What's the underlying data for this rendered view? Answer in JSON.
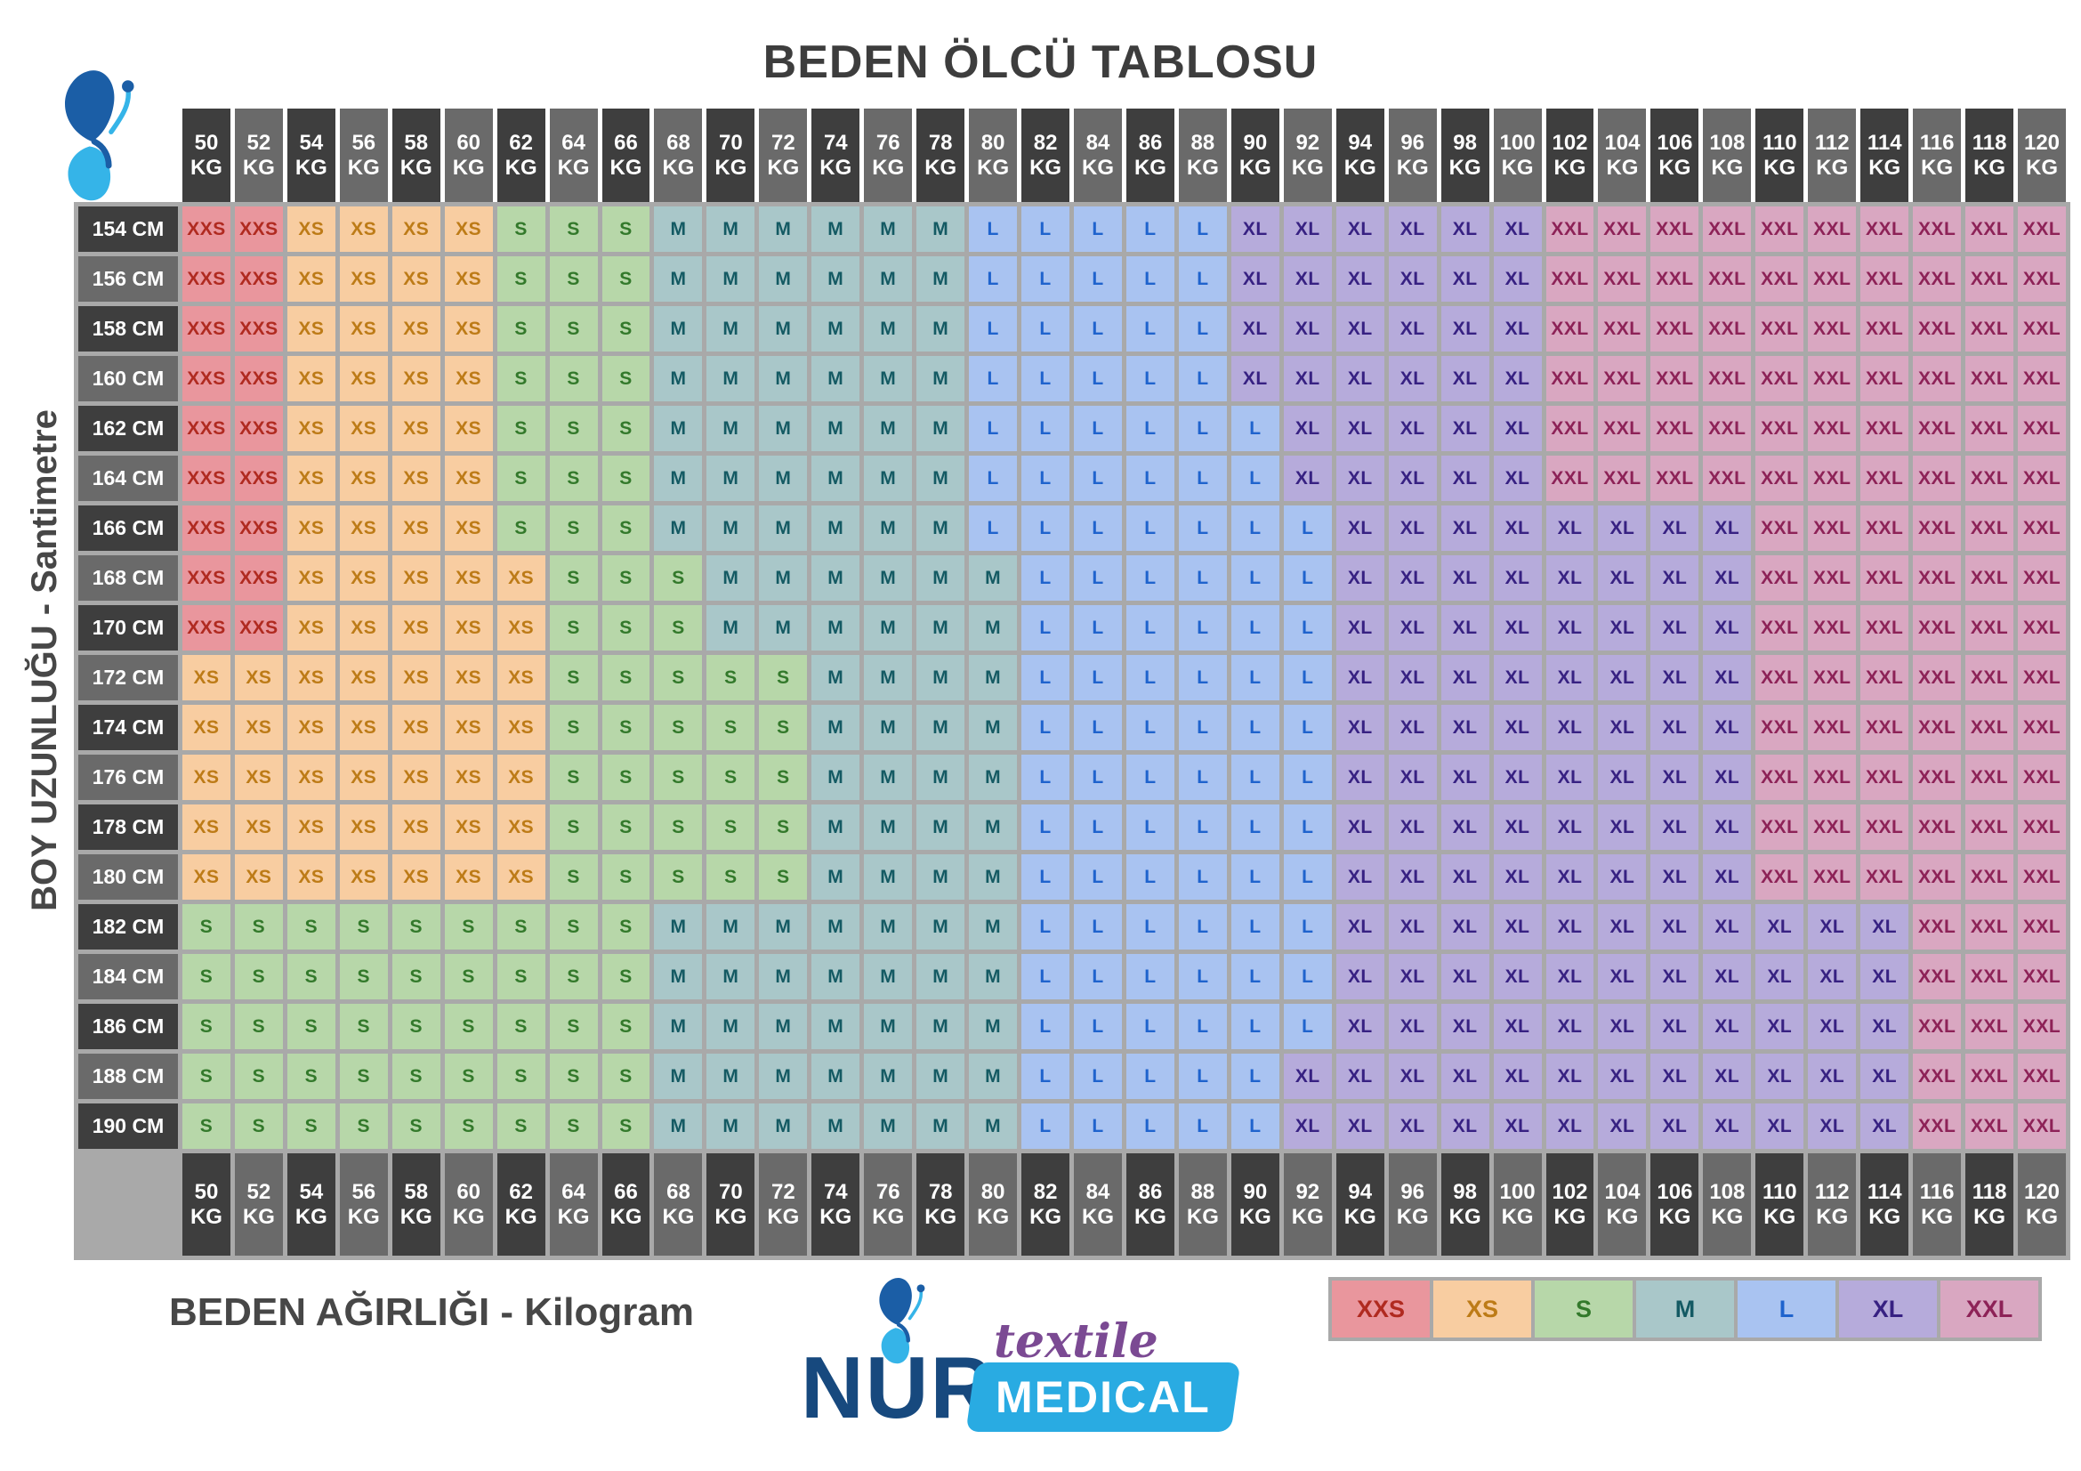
{
  "title": "BEDEN ÖLCÜ TABLOSU",
  "axis": {
    "y_label": "BOY UZUNLUĞU - Santimetre",
    "x_label": "BEDEN AĞIRLIĞI - Kilogram"
  },
  "logo": {
    "name": "NUR",
    "textile": "textile",
    "medical": "MEDICAL"
  },
  "legend": [
    "XXS",
    "XS",
    "S",
    "M",
    "L",
    "XL",
    "XXL"
  ],
  "colors": {
    "header_dark": "#3e3e3e",
    "header_medium": "#6a6a6a",
    "grid_background": "#a9a9a9",
    "title_text": "#3d3d3d",
    "label_text": "#474747",
    "brand_navy": "#17497e",
    "brand_cyan": "#29abe2",
    "brand_purple": "#7b4a93",
    "butterfly_dark": "#1b5ea6",
    "butterfly_light": "#35b4e8",
    "sizes": {
      "XXS": {
        "bg": "#e9969d",
        "text": "#b02a20"
      },
      "XS": {
        "bg": "#f8cda1",
        "text": "#bd7b17"
      },
      "S": {
        "bg": "#b7d7a9",
        "text": "#33792b"
      },
      "M": {
        "bg": "#a9c7c9",
        "text": "#145a63"
      },
      "L": {
        "bg": "#a9c3f1",
        "text": "#1f63cd"
      },
      "XL": {
        "bg": "#b6abdb",
        "text": "#372182"
      },
      "XXL": {
        "bg": "#d9a7c1",
        "text": "#8d2257"
      }
    }
  },
  "chart_data": {
    "type": "heatmap",
    "title": "BEDEN ÖLCÜ TABLOSU",
    "x_label": "BEDEN AĞIRLIĞI - Kilogram",
    "y_label": "BOY UZUNLUĞU - Santimetre",
    "x_unit": "KG",
    "y_unit": "CM",
    "legend_position": "bottom-right",
    "weights_kg": [
      50,
      52,
      54,
      56,
      58,
      60,
      62,
      64,
      66,
      68,
      70,
      72,
      74,
      76,
      78,
      80,
      82,
      84,
      86,
      88,
      90,
      92,
      94,
      96,
      98,
      100,
      102,
      104,
      106,
      108,
      110,
      112,
      114,
      116,
      118,
      120
    ],
    "heights_cm": [
      154,
      156,
      158,
      160,
      162,
      164,
      166,
      168,
      170,
      172,
      174,
      176,
      178,
      180,
      182,
      184,
      186,
      188,
      190
    ],
    "matrix": [
      [
        "XXS",
        "XXS",
        "XS",
        "XS",
        "XS",
        "XS",
        "S",
        "S",
        "S",
        "M",
        "M",
        "M",
        "M",
        "M",
        "M",
        "L",
        "L",
        "L",
        "L",
        "L",
        "XL",
        "XL",
        "XL",
        "XL",
        "XL",
        "XL",
        "XXL",
        "XXL",
        "XXL",
        "XXL",
        "XXL",
        "XXL",
        "XXL",
        "XXL",
        "XXL",
        "XXL"
      ],
      [
        "XXS",
        "XXS",
        "XS",
        "XS",
        "XS",
        "XS",
        "S",
        "S",
        "S",
        "M",
        "M",
        "M",
        "M",
        "M",
        "M",
        "L",
        "L",
        "L",
        "L",
        "L",
        "XL",
        "XL",
        "XL",
        "XL",
        "XL",
        "XL",
        "XXL",
        "XXL",
        "XXL",
        "XXL",
        "XXL",
        "XXL",
        "XXL",
        "XXL",
        "XXL",
        "XXL"
      ],
      [
        "XXS",
        "XXS",
        "XS",
        "XS",
        "XS",
        "XS",
        "S",
        "S",
        "S",
        "M",
        "M",
        "M",
        "M",
        "M",
        "M",
        "L",
        "L",
        "L",
        "L",
        "L",
        "XL",
        "XL",
        "XL",
        "XL",
        "XL",
        "XL",
        "XXL",
        "XXL",
        "XXL",
        "XXL",
        "XXL",
        "XXL",
        "XXL",
        "XXL",
        "XXL",
        "XXL"
      ],
      [
        "XXS",
        "XXS",
        "XS",
        "XS",
        "XS",
        "XS",
        "S",
        "S",
        "S",
        "M",
        "M",
        "M",
        "M",
        "M",
        "M",
        "L",
        "L",
        "L",
        "L",
        "L",
        "XL",
        "XL",
        "XL",
        "XL",
        "XL",
        "XL",
        "XXL",
        "XXL",
        "XXL",
        "XXL",
        "XXL",
        "XXL",
        "XXL",
        "XXL",
        "XXL",
        "XXL"
      ],
      [
        "XXS",
        "XXS",
        "XS",
        "XS",
        "XS",
        "XS",
        "S",
        "S",
        "S",
        "M",
        "M",
        "M",
        "M",
        "M",
        "M",
        "L",
        "L",
        "L",
        "L",
        "L",
        "L",
        "XL",
        "XL",
        "XL",
        "XL",
        "XL",
        "XXL",
        "XXL",
        "XXL",
        "XXL",
        "XXL",
        "XXL",
        "XXL",
        "XXL",
        "XXL",
        "XXL"
      ],
      [
        "XXS",
        "XXS",
        "XS",
        "XS",
        "XS",
        "XS",
        "S",
        "S",
        "S",
        "M",
        "M",
        "M",
        "M",
        "M",
        "M",
        "L",
        "L",
        "L",
        "L",
        "L",
        "L",
        "XL",
        "XL",
        "XL",
        "XL",
        "XL",
        "XXL",
        "XXL",
        "XXL",
        "XXL",
        "XXL",
        "XXL",
        "XXL",
        "XXL",
        "XXL",
        "XXL"
      ],
      [
        "XXS",
        "XXS",
        "XS",
        "XS",
        "XS",
        "XS",
        "S",
        "S",
        "S",
        "M",
        "M",
        "M",
        "M",
        "M",
        "M",
        "L",
        "L",
        "L",
        "L",
        "L",
        "L",
        "L",
        "XL",
        "XL",
        "XL",
        "XL",
        "XL",
        "XL",
        "XL",
        "XL",
        "XXL",
        "XXL",
        "XXL",
        "XXL",
        "XXL",
        "XXL"
      ],
      [
        "XXS",
        "XXS",
        "XS",
        "XS",
        "XS",
        "XS",
        "XS",
        "S",
        "S",
        "S",
        "M",
        "M",
        "M",
        "M",
        "M",
        "M",
        "L",
        "L",
        "L",
        "L",
        "L",
        "L",
        "XL",
        "XL",
        "XL",
        "XL",
        "XL",
        "XL",
        "XL",
        "XL",
        "XXL",
        "XXL",
        "XXL",
        "XXL",
        "XXL",
        "XXL"
      ],
      [
        "XXS",
        "XXS",
        "XS",
        "XS",
        "XS",
        "XS",
        "XS",
        "S",
        "S",
        "S",
        "M",
        "M",
        "M",
        "M",
        "M",
        "M",
        "L",
        "L",
        "L",
        "L",
        "L",
        "L",
        "XL",
        "XL",
        "XL",
        "XL",
        "XL",
        "XL",
        "XL",
        "XL",
        "XXL",
        "XXL",
        "XXL",
        "XXL",
        "XXL",
        "XXL"
      ],
      [
        "XS",
        "XS",
        "XS",
        "XS",
        "XS",
        "XS",
        "XS",
        "S",
        "S",
        "S",
        "S",
        "S",
        "M",
        "M",
        "M",
        "M",
        "L",
        "L",
        "L",
        "L",
        "L",
        "L",
        "XL",
        "XL",
        "XL",
        "XL",
        "XL",
        "XL",
        "XL",
        "XL",
        "XXL",
        "XXL",
        "XXL",
        "XXL",
        "XXL",
        "XXL"
      ],
      [
        "XS",
        "XS",
        "XS",
        "XS",
        "XS",
        "XS",
        "XS",
        "S",
        "S",
        "S",
        "S",
        "S",
        "M",
        "M",
        "M",
        "M",
        "L",
        "L",
        "L",
        "L",
        "L",
        "L",
        "XL",
        "XL",
        "XL",
        "XL",
        "XL",
        "XL",
        "XL",
        "XL",
        "XXL",
        "XXL",
        "XXL",
        "XXL",
        "XXL",
        "XXL"
      ],
      [
        "XS",
        "XS",
        "XS",
        "XS",
        "XS",
        "XS",
        "XS",
        "S",
        "S",
        "S",
        "S",
        "S",
        "M",
        "M",
        "M",
        "M",
        "L",
        "L",
        "L",
        "L",
        "L",
        "L",
        "XL",
        "XL",
        "XL",
        "XL",
        "XL",
        "XL",
        "XL",
        "XL",
        "XXL",
        "XXL",
        "XXL",
        "XXL",
        "XXL",
        "XXL"
      ],
      [
        "XS",
        "XS",
        "XS",
        "XS",
        "XS",
        "XS",
        "XS",
        "S",
        "S",
        "S",
        "S",
        "S",
        "M",
        "M",
        "M",
        "M",
        "L",
        "L",
        "L",
        "L",
        "L",
        "L",
        "XL",
        "XL",
        "XL",
        "XL",
        "XL",
        "XL",
        "XL",
        "XL",
        "XXL",
        "XXL",
        "XXL",
        "XXL",
        "XXL",
        "XXL"
      ],
      [
        "XS",
        "XS",
        "XS",
        "XS",
        "XS",
        "XS",
        "XS",
        "S",
        "S",
        "S",
        "S",
        "S",
        "M",
        "M",
        "M",
        "M",
        "L",
        "L",
        "L",
        "L",
        "L",
        "L",
        "XL",
        "XL",
        "XL",
        "XL",
        "XL",
        "XL",
        "XL",
        "XL",
        "XXL",
        "XXL",
        "XXL",
        "XXL",
        "XXL",
        "XXL"
      ],
      [
        "S",
        "S",
        "S",
        "S",
        "S",
        "S",
        "S",
        "S",
        "S",
        "M",
        "M",
        "M",
        "M",
        "M",
        "M",
        "M",
        "L",
        "L",
        "L",
        "L",
        "L",
        "L",
        "XL",
        "XL",
        "XL",
        "XL",
        "XL",
        "XL",
        "XL",
        "XL",
        "XL",
        "XL",
        "XL",
        "XXL",
        "XXL",
        "XXL"
      ],
      [
        "S",
        "S",
        "S",
        "S",
        "S",
        "S",
        "S",
        "S",
        "S",
        "M",
        "M",
        "M",
        "M",
        "M",
        "M",
        "M",
        "L",
        "L",
        "L",
        "L",
        "L",
        "L",
        "XL",
        "XL",
        "XL",
        "XL",
        "XL",
        "XL",
        "XL",
        "XL",
        "XL",
        "XL",
        "XL",
        "XXL",
        "XXL",
        "XXL"
      ],
      [
        "S",
        "S",
        "S",
        "S",
        "S",
        "S",
        "S",
        "S",
        "S",
        "M",
        "M",
        "M",
        "M",
        "M",
        "M",
        "M",
        "L",
        "L",
        "L",
        "L",
        "L",
        "L",
        "XL",
        "XL",
        "XL",
        "XL",
        "XL",
        "XL",
        "XL",
        "XL",
        "XL",
        "XL",
        "XL",
        "XXL",
        "XXL",
        "XXL"
      ],
      [
        "S",
        "S",
        "S",
        "S",
        "S",
        "S",
        "S",
        "S",
        "S",
        "M",
        "M",
        "M",
        "M",
        "M",
        "M",
        "M",
        "L",
        "L",
        "L",
        "L",
        "L",
        "XL",
        "XL",
        "XL",
        "XL",
        "XL",
        "XL",
        "XL",
        "XL",
        "XL",
        "XL",
        "XL",
        "XL",
        "XXL",
        "XXL",
        "XXL"
      ],
      [
        "S",
        "S",
        "S",
        "S",
        "S",
        "S",
        "S",
        "S",
        "S",
        "M",
        "M",
        "M",
        "M",
        "M",
        "M",
        "M",
        "L",
        "L",
        "L",
        "L",
        "L",
        "XL",
        "XL",
        "XL",
        "XL",
        "XL",
        "XL",
        "XL",
        "XL",
        "XL",
        "XL",
        "XL",
        "XL",
        "XXL",
        "XXL",
        "XXL"
      ]
    ]
  }
}
